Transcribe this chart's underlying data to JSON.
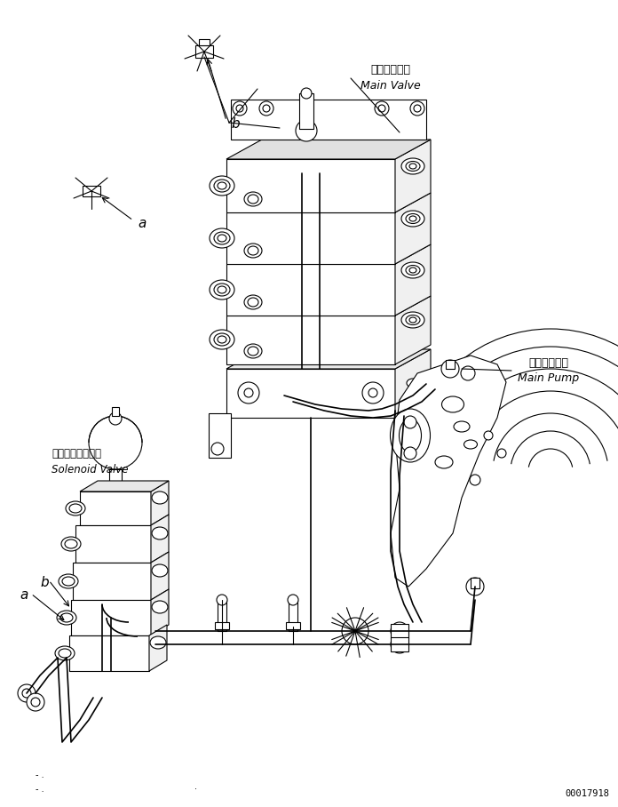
{
  "background_color": "#ffffff",
  "line_color": "#000000",
  "figure_width": 6.96,
  "figure_height": 9.08,
  "dpi": 100,
  "doc_number": "00017918",
  "labels": {
    "main_valve_jp": "メインバルブ",
    "main_valve_en": "Main Valve",
    "solenoid_valve_jp": "ソレノイドバルブ",
    "solenoid_valve_en": "Solenoid Valve",
    "main_pump_jp": "メインポンプ",
    "main_pump_en": "Main Pump"
  }
}
